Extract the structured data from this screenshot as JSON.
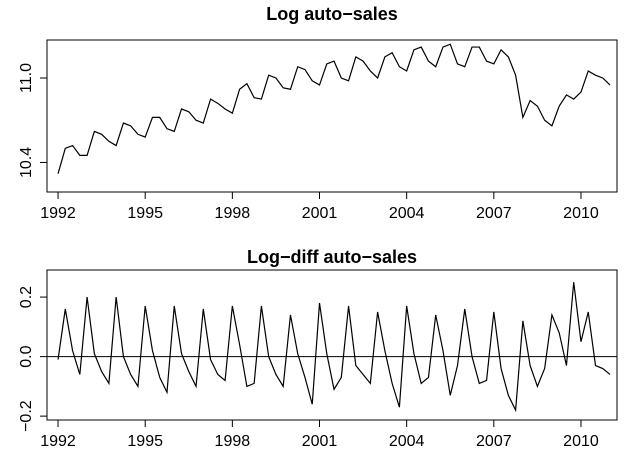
{
  "chart_data": [
    {
      "type": "line",
      "title": "Log auto−sales",
      "color": "#000000",
      "x": [
        1992,
        1992.25,
        1992.5,
        1992.75,
        1993,
        1993.25,
        1993.5,
        1993.75,
        1994,
        1994.25,
        1994.5,
        1994.75,
        1995,
        1995.25,
        1995.5,
        1995.75,
        1996,
        1996.25,
        1996.5,
        1996.75,
        1997,
        1997.25,
        1997.5,
        1997.75,
        1998,
        1998.25,
        1998.5,
        1998.75,
        1999,
        1999.25,
        1999.5,
        1999.75,
        2000,
        2000.25,
        2000.5,
        2000.75,
        2001,
        2001.25,
        2001.5,
        2001.75,
        2002,
        2002.25,
        2002.5,
        2002.75,
        2003,
        2003.25,
        2003.5,
        2003.75,
        2004,
        2004.25,
        2004.5,
        2004.75,
        2005,
        2005.25,
        2005.5,
        2005.75,
        2006,
        2006.25,
        2006.5,
        2006.75,
        2007,
        2007.25,
        2007.5,
        2007.75,
        2008,
        2008.25,
        2008.5,
        2008.75,
        2009,
        2009.25,
        2009.5,
        2009.75,
        2010,
        2010.25,
        2010.5,
        2010.75,
        2011
      ],
      "values": [
        10.32,
        10.5,
        10.52,
        10.45,
        10.45,
        10.62,
        10.6,
        10.55,
        10.52,
        10.68,
        10.66,
        10.6,
        10.58,
        10.72,
        10.72,
        10.64,
        10.62,
        10.78,
        10.76,
        10.7,
        10.68,
        10.85,
        10.82,
        10.78,
        10.75,
        10.92,
        10.96,
        10.86,
        10.85,
        11.02,
        11.0,
        10.93,
        10.92,
        11.08,
        11.06,
        10.98,
        10.95,
        11.1,
        11.12,
        11.0,
        10.98,
        11.15,
        11.12,
        11.05,
        11.0,
        11.15,
        11.18,
        11.08,
        11.05,
        11.2,
        11.22,
        11.12,
        11.08,
        11.22,
        11.24,
        11.1,
        11.08,
        11.22,
        11.22,
        11.12,
        11.1,
        11.2,
        11.15,
        11.02,
        10.72,
        10.84,
        10.8,
        10.7,
        10.66,
        10.8,
        10.88,
        10.85,
        10.9,
        11.05,
        11.02,
        11.0,
        10.95
      ],
      "xlim": [
        1991.62,
        2011.24
      ],
      "ylim": [
        10.19,
        11.27
      ],
      "xticks": [
        1992,
        1995,
        1998,
        2001,
        2004,
        2007,
        2010
      ],
      "yticks": [
        10.4,
        {
          "value": 11,
          "label": "11.0"
        }
      ]
    },
    {
      "type": "line",
      "title": "Log−diff auto−sales",
      "color": "#000000",
      "x": [
        1992,
        1992.25,
        1992.5,
        1992.75,
        1993,
        1993.25,
        1993.5,
        1993.75,
        1994,
        1994.25,
        1994.5,
        1994.75,
        1995,
        1995.25,
        1995.5,
        1995.75,
        1996,
        1996.25,
        1996.5,
        1996.75,
        1997,
        1997.25,
        1997.5,
        1997.75,
        1998,
        1998.25,
        1998.5,
        1998.75,
        1999,
        1999.25,
        1999.5,
        1999.75,
        2000,
        2000.25,
        2000.5,
        2000.75,
        2001,
        2001.25,
        2001.5,
        2001.75,
        2002,
        2002.25,
        2002.5,
        2002.75,
        2003,
        2003.25,
        2003.5,
        2003.75,
        2004,
        2004.25,
        2004.5,
        2004.75,
        2005,
        2005.25,
        2005.5,
        2005.75,
        2006,
        2006.25,
        2006.5,
        2006.75,
        2007,
        2007.25,
        2007.5,
        2007.75,
        2008,
        2008.25,
        2008.5,
        2008.75,
        2009,
        2009.25,
        2009.5,
        2009.75,
        2010,
        2010.25,
        2010.5,
        2010.75,
        2011
      ],
      "values": [
        -0.01,
        0.16,
        0.02,
        -0.06,
        0.2,
        0.01,
        -0.05,
        -0.09,
        0.2,
        0.0,
        -0.06,
        -0.1,
        0.17,
        0.02,
        -0.07,
        -0.12,
        0.17,
        0.01,
        -0.05,
        -0.1,
        0.16,
        -0.01,
        -0.06,
        -0.08,
        0.17,
        0.04,
        -0.1,
        -0.09,
        0.17,
        0.0,
        -0.06,
        -0.1,
        0.14,
        0.01,
        -0.07,
        -0.16,
        0.18,
        0.01,
        -0.11,
        -0.07,
        0.17,
        -0.03,
        -0.06,
        -0.09,
        0.15,
        0.02,
        -0.09,
        -0.17,
        0.17,
        0.01,
        -0.09,
        -0.07,
        0.14,
        0.02,
        -0.13,
        -0.03,
        0.16,
        0.0,
        -0.09,
        -0.08,
        0.15,
        -0.04,
        -0.13,
        -0.18,
        0.12,
        -0.03,
        -0.1,
        -0.04,
        0.14,
        0.08,
        -0.03,
        0.25,
        0.05,
        0.15,
        -0.03,
        -0.04,
        -0.06
      ],
      "hline": 0,
      "xlim": [
        1991.62,
        2011.24
      ],
      "ylim": [
        -0.213,
        0.291
      ],
      "xticks": [
        1992,
        1995,
        1998,
        2001,
        2004,
        2007,
        2010
      ],
      "yticks": [
        {
          "value": -0.2,
          "label": "−0.2"
        },
        {
          "value": 0,
          "label": "0.0"
        },
        0.2
      ]
    }
  ]
}
